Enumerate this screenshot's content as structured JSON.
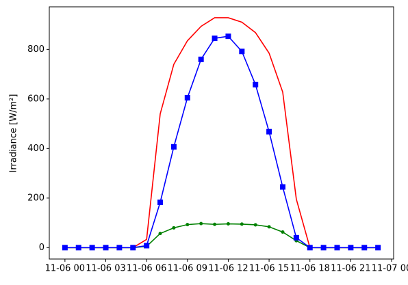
{
  "chart_data": {
    "type": "line",
    "ylabel": "Irradiance [W/m²]",
    "x": [
      0,
      1,
      2,
      3,
      4,
      5,
      6,
      7,
      8,
      9,
      10,
      11,
      12,
      13,
      14,
      15,
      16,
      17,
      18,
      19,
      20,
      21,
      22,
      23
    ],
    "series": [
      {
        "color": "#ff0000",
        "marker": "none",
        "values": [
          0,
          0,
          0,
          0,
          0,
          0,
          33,
          540,
          740,
          835,
          893,
          928,
          928,
          910,
          868,
          785,
          628,
          196,
          0,
          0,
          0,
          0,
          0,
          0
        ]
      },
      {
        "color": "#008000",
        "marker": "circle",
        "values": [
          0,
          0,
          0,
          0,
          0,
          0,
          5,
          57,
          80,
          93,
          97,
          94,
          96,
          95,
          92,
          84,
          63,
          28,
          0,
          0,
          0,
          0,
          0,
          0
        ]
      },
      {
        "color": "#0000ff",
        "marker": "square",
        "values": [
          0,
          0,
          0,
          0,
          0,
          0,
          8,
          183,
          407,
          605,
          760,
          845,
          853,
          792,
          658,
          468,
          245,
          40,
          0,
          0,
          0,
          0,
          0,
          0
        ]
      }
    ],
    "xlim": [
      -1.15,
      24.15
    ],
    "xticks": [
      {
        "value": 0,
        "label": "11-06 00"
      },
      {
        "value": 3,
        "label": "11-06 03"
      },
      {
        "value": 6,
        "label": "11-06 06"
      },
      {
        "value": 9,
        "label": "11-06 09"
      },
      {
        "value": 12,
        "label": "11-06 12"
      },
      {
        "value": 15,
        "label": "11-06 15"
      },
      {
        "value": 18,
        "label": "11-06 18"
      },
      {
        "value": 21,
        "label": "11-06 21"
      },
      {
        "value": 24,
        "label": "11-07 00"
      }
    ],
    "ylim": [
      -46,
      972
    ],
    "yticks": [
      0,
      200,
      400,
      600,
      800
    ]
  }
}
